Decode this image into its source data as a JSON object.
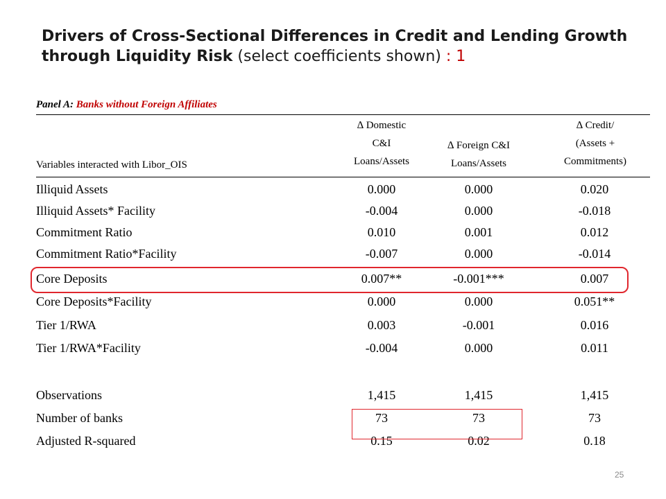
{
  "title": {
    "bold_text": "Drivers of Cross-Sectional Differences in Credit and Lending Growth through Liquidity Risk",
    "normal_text": " (select coefficients shown)",
    "suffix": " : 1"
  },
  "panel": {
    "prefix": "Panel A:",
    "name": " Banks without Foreign Affiliates"
  },
  "table": {
    "header": {
      "var_label": "Variables interacted with Libor_OIS",
      "col1": [
        "∆ Domestic",
        "C&I",
        "Loans/Assets"
      ],
      "col2": [
        "∆ Foreign C&I",
        "Loans/Assets"
      ],
      "col3": [
        "∆ Credit/",
        "(Assets +",
        "Commitments)"
      ]
    },
    "rows": [
      {
        "label": "Illiquid Assets",
        "v1": "0.000",
        "v2": "0.000",
        "v3": "0.020"
      },
      {
        "label": "Illiquid Assets* Facility",
        "v1": "-0.004",
        "v2": "0.000",
        "v3": "-0.018"
      },
      {
        "label": "Commitment Ratio",
        "v1": "0.010",
        "v2": "0.001",
        "v3": "0.012"
      },
      {
        "label": "Commitment Ratio*Facility",
        "v1": "-0.007",
        "v2": "0.000",
        "v3": "-0.014"
      },
      {
        "label": "Core Deposits",
        "v1": "0.007**",
        "v2": "-0.001***",
        "v3": "0.007"
      },
      {
        "label": "Core Deposits*Facility",
        "v1": "0.000",
        "v2": "0.000",
        "v3": "0.051**"
      },
      {
        "label": "Tier 1/RWA",
        "v1": "0.003",
        "v2": "-0.001",
        "v3": "0.016"
      },
      {
        "label": "Tier 1/RWA*Facility",
        "v1": "-0.004",
        "v2": "0.000",
        "v3": "0.011"
      },
      {
        "label": "Observations",
        "v1": "1,415",
        "v2": "1,415",
        "v3": "1,415"
      },
      {
        "label": "Number of banks",
        "v1": "73",
        "v2": "73",
        "v3": "73"
      },
      {
        "label": "Adjusted R-squared",
        "v1": "0.15",
        "v2": "0.02",
        "v3": "0.18"
      }
    ]
  },
  "page_number": "25",
  "colors": {
    "accent_red": "#c00000",
    "highlight_red": "#e0262d"
  }
}
